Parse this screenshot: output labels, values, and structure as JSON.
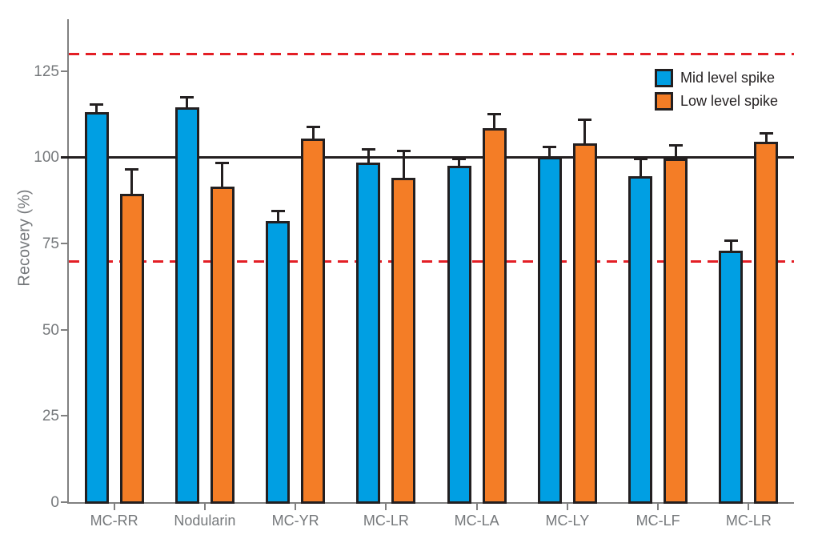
{
  "chart_data": {
    "type": "bar",
    "title": "",
    "xlabel": "",
    "ylabel": "Recovery (%)",
    "categories": [
      "MC-RR",
      "Nodularin",
      "MC-YR",
      "MC-LR",
      "MC-LA",
      "MC-LY",
      "MC-LF",
      "MC-LR"
    ],
    "series": [
      {
        "name": "Mid level spike",
        "color": "#009FE3",
        "values": [
          113,
          114.5,
          81.5,
          98.5,
          97.5,
          100,
          94.5,
          73
        ],
        "errors_plus": [
          2.5,
          3,
          3,
          4,
          2,
          3,
          5,
          3
        ]
      },
      {
        "name": "Low level spike",
        "color": "#F47D26",
        "values": [
          89.5,
          91.5,
          105.5,
          94,
          108.5,
          104,
          99.5,
          104.5
        ],
        "errors_plus": [
          7,
          7,
          3.5,
          8,
          4,
          7,
          4,
          2.5
        ]
      }
    ],
    "yticks": [
      0,
      25,
      50,
      75,
      100,
      125
    ],
    "ylim": [
      0,
      140
    ],
    "grid": false,
    "legend_position": "top-right",
    "reference_lines": [
      {
        "value": 100,
        "style": "solid",
        "color": "#231F20",
        "meaning": "target-recovery"
      },
      {
        "value": 130,
        "style": "dashed",
        "color": "#E31E25",
        "meaning": "upper-limit"
      },
      {
        "value": 70,
        "style": "dashed",
        "color": "#E31E25",
        "meaning": "lower-limit"
      }
    ],
    "error_bar_direction": "up"
  },
  "colors": {
    "axis": "#808080",
    "tick_label": "#75787B",
    "bar_outline": "#231F20",
    "reference_solid": "#231F20",
    "reference_dashed": "#E31E25",
    "background": "#ffffff"
  }
}
